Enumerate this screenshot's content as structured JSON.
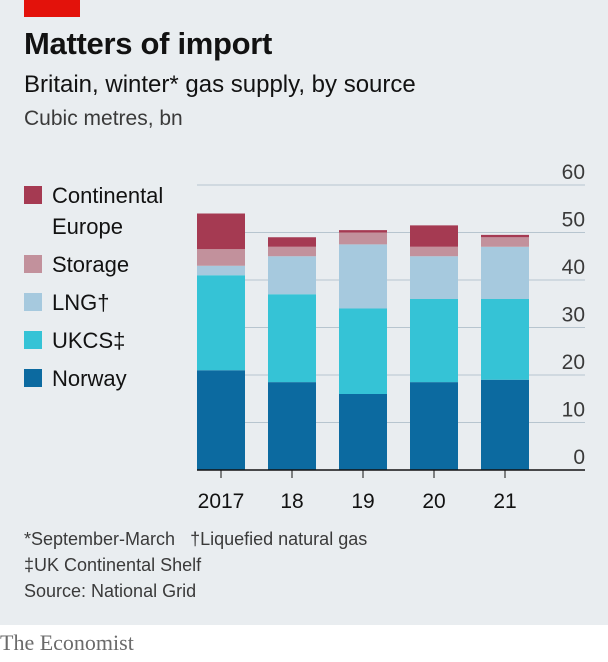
{
  "header": {
    "title": "Matters of import",
    "subtitle": "Britain, winter* gas supply, by source",
    "units": "Cubic metres, bn"
  },
  "legend": [
    {
      "label": "Continental Europe",
      "color": "#a53a52"
    },
    {
      "label": "Storage",
      "color": "#c2919c"
    },
    {
      "label": "LNG†",
      "color": "#a6c9de"
    },
    {
      "label": "UKCS‡",
      "color": "#35c3d6"
    },
    {
      "label": "Norway",
      "color": "#0c6aa0"
    }
  ],
  "chart_data": {
    "type": "bar",
    "stacked": true,
    "title": "Matters of import",
    "subtitle": "Britain, winter* gas supply, by source",
    "ylabel": "Cubic metres, bn",
    "categories": [
      "2017",
      "18",
      "19",
      "20",
      "21"
    ],
    "ylim": [
      0,
      60
    ],
    "yticks": [
      0,
      10,
      20,
      30,
      40,
      50,
      60
    ],
    "y_axis_side": "right",
    "grid": true,
    "legend_position": "left",
    "series": [
      {
        "name": "Norway",
        "color": "#0c6aa0",
        "values": [
          21,
          18.5,
          16,
          18.5,
          19
        ]
      },
      {
        "name": "UKCS‡",
        "color": "#35c3d6",
        "values": [
          20,
          18.5,
          18,
          17.5,
          17
        ]
      },
      {
        "name": "LNG†",
        "color": "#a6c9de",
        "values": [
          2,
          8,
          13.5,
          9,
          11
        ]
      },
      {
        "name": "Storage",
        "color": "#c2919c",
        "values": [
          3.5,
          2,
          2.5,
          2,
          2
        ]
      },
      {
        "name": "Continental Europe",
        "color": "#a53a52",
        "values": [
          7.5,
          2,
          0.5,
          4.5,
          0.5
        ]
      }
    ]
  },
  "footnotes": {
    "line1a": "*September-March",
    "line1b": "†Liquefied natural gas",
    "line2": "‡UK Continental Shelf",
    "source": "Source: National Grid"
  },
  "brand": "The Economist"
}
